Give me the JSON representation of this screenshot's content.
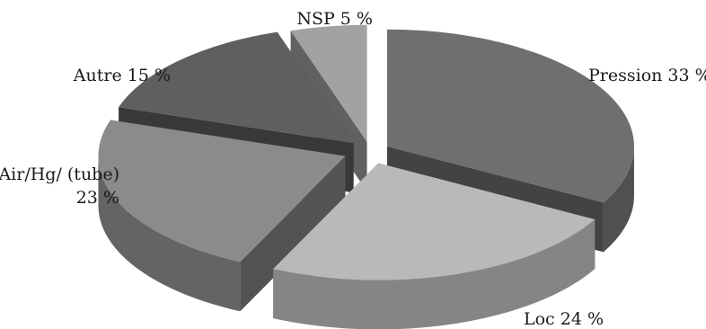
{
  "chart_data": {
    "type": "pie",
    "variant": "3d-exploded",
    "title": "",
    "slices": [
      {
        "name": "Pression",
        "label": "Pression 33 %",
        "value": 33,
        "color": "#6f6f6f"
      },
      {
        "name": "Loc",
        "label": "Loc 24 %",
        "value": 24,
        "color": "#b9b9b9"
      },
      {
        "name": "Air/Hg/ (tube)",
        "label_lines": [
          "Air/Hg/ (tube)",
          "23 %"
        ],
        "value": 23,
        "color": "#8b8b8b"
      },
      {
        "name": "Autre",
        "label": "Autre 15 %",
        "value": 15,
        "color": "#5f5f5f"
      },
      {
        "name": "NSP",
        "label": "NSP 5 %",
        "value": 5,
        "color": "#a2a2a2"
      }
    ],
    "legend": "none",
    "grid": false
  }
}
